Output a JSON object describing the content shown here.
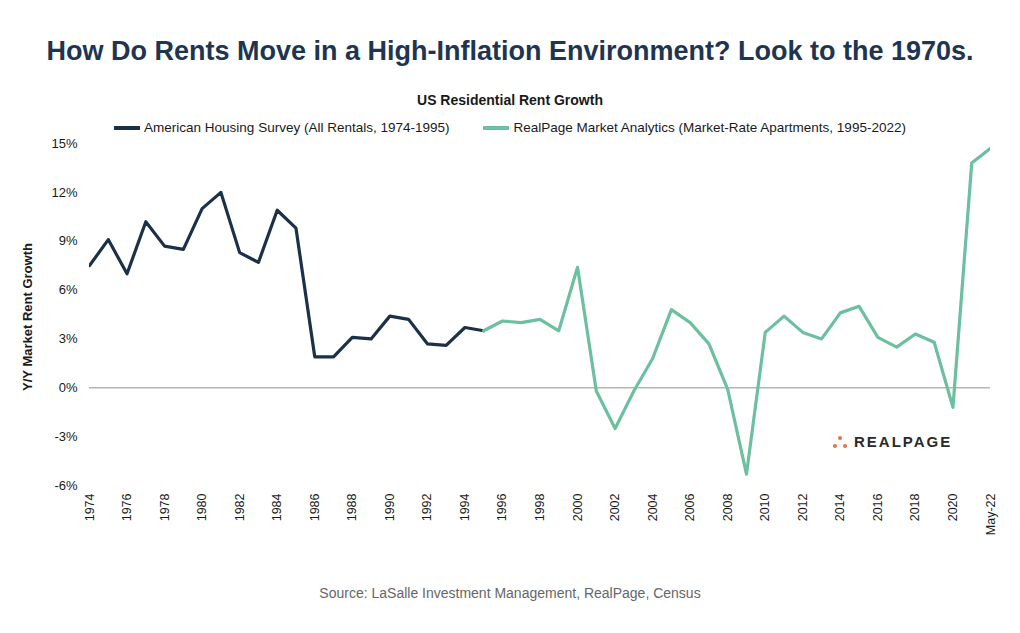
{
  "chart_data": {
    "type": "line",
    "title": "How Do Rents Move in a High-Inflation Environment? Look to the 1970s.",
    "subtitle": "US Residential Rent Growth",
    "y_label": "Y/Y Market Rent Growth",
    "caption": "Source: LaSalle Investment Management, RealPage, Census",
    "annotations": [
      {
        "text": "REALPAGE"
      }
    ],
    "x": [
      1974,
      1975,
      1976,
      1977,
      1978,
      1979,
      1980,
      1981,
      1982,
      1983,
      1984,
      1985,
      1986,
      1987,
      1988,
      1989,
      1990,
      1991,
      1992,
      1993,
      1994,
      1995,
      1996,
      1997,
      1998,
      1999,
      2000,
      2001,
      2002,
      2003,
      2004,
      2005,
      2006,
      2007,
      2008,
      2009,
      2010,
      2011,
      2012,
      2013,
      2014,
      2015,
      2016,
      2017,
      2018,
      2019,
      2020,
      2021,
      2022
    ],
    "series": [
      {
        "name": "American Housing Survey (All Rentals, 1974-1995)",
        "color": "#1b3049",
        "values": [
          7.5,
          9.1,
          7.0,
          10.2,
          8.7,
          8.5,
          11.0,
          12.0,
          8.3,
          7.7,
          10.9,
          9.8,
          1.9,
          1.9,
          3.1,
          3.0,
          4.4,
          4.2,
          2.7,
          2.6,
          3.7,
          3.5,
          null,
          null,
          null,
          null,
          null,
          null,
          null,
          null,
          null,
          null,
          null,
          null,
          null,
          null,
          null,
          null,
          null,
          null,
          null,
          null,
          null,
          null,
          null,
          null,
          null,
          null,
          null
        ]
      },
      {
        "name": "RealPage Market Analytics (Market-Rate Apartments, 1995-2022)",
        "color": "#6cbf9f",
        "values": [
          null,
          null,
          null,
          null,
          null,
          null,
          null,
          null,
          null,
          null,
          null,
          null,
          null,
          null,
          null,
          null,
          null,
          null,
          null,
          null,
          null,
          3.5,
          4.1,
          4.0,
          4.2,
          3.5,
          7.4,
          -0.2,
          -2.5,
          -0.2,
          1.8,
          4.8,
          4.0,
          2.7,
          -0.1,
          -5.3,
          3.4,
          4.4,
          3.4,
          3.0,
          4.6,
          5.0,
          3.1,
          2.5,
          3.3,
          2.8,
          -1.2,
          13.8,
          14.7
        ]
      }
    ],
    "xlim": [
      1974,
      2022
    ],
    "xticks": [
      1974,
      1976,
      1978,
      1980,
      1982,
      1984,
      1986,
      1988,
      1990,
      1992,
      1994,
      1996,
      1998,
      2000,
      2002,
      2004,
      2006,
      2008,
      2010,
      2012,
      2014,
      2016,
      2018,
      2020,
      {
        "value": 2022,
        "label": "May-22"
      }
    ],
    "ylim": [
      -6,
      15
    ],
    "yticks": [
      {
        "value": -6,
        "label": "-6%"
      },
      {
        "value": -3,
        "label": "-3%"
      },
      {
        "value": 0,
        "label": "0%"
      },
      {
        "value": 3,
        "label": "3%"
      },
      {
        "value": 6,
        "label": "6%"
      },
      {
        "value": 9,
        "label": "9%"
      },
      {
        "value": 12,
        "label": "12%"
      },
      {
        "value": 15,
        "label": "15%"
      }
    ],
    "grid": false,
    "legend": "top"
  }
}
